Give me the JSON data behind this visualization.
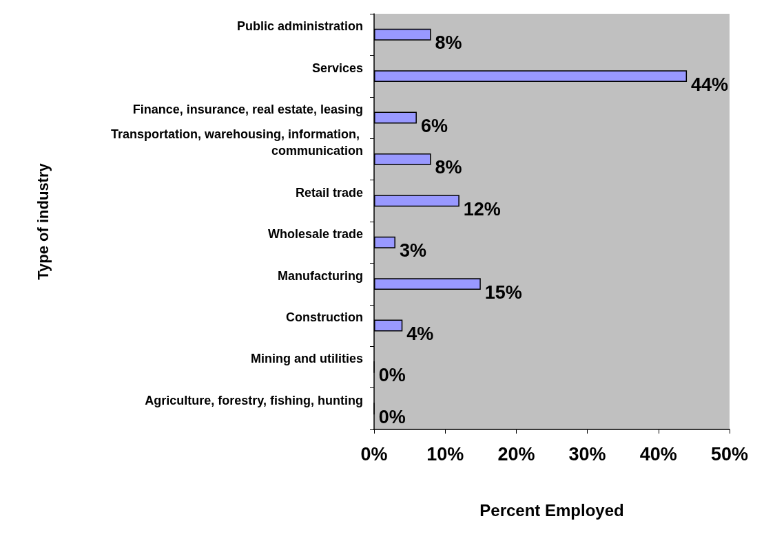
{
  "chart_data": {
    "type": "bar",
    "orientation": "horizontal",
    "xlabel": "Percent Employed",
    "ylabel": "Type of industry",
    "categories": [
      "Public administration",
      "Services",
      "Finance, insurance, real estate, leasing",
      "Transportation, warehousing, information, communication",
      "Retail trade",
      "Wholesale trade",
      "Manufacturing",
      "Construction",
      "Mining and utilities",
      "Agriculture, forestry, fishing, hunting"
    ],
    "values": [
      8,
      44,
      6,
      8,
      12,
      3,
      15,
      4,
      0,
      0
    ],
    "value_labels": [
      "8%",
      "44%",
      "6%",
      "8%",
      "12%",
      "3%",
      "15%",
      "4%",
      "0%",
      "0%"
    ],
    "color": "#9999ff",
    "xlim": [
      0,
      50
    ],
    "xticks": [
      {
        "value": 0,
        "label": "0%"
      },
      {
        "value": 10,
        "label": "10%"
      },
      {
        "value": 20,
        "label": "20%"
      },
      {
        "value": 30,
        "label": "30%"
      },
      {
        "value": 40,
        "label": "40%"
      },
      {
        "value": 50,
        "label": "50%"
      }
    ],
    "grid": false
  }
}
